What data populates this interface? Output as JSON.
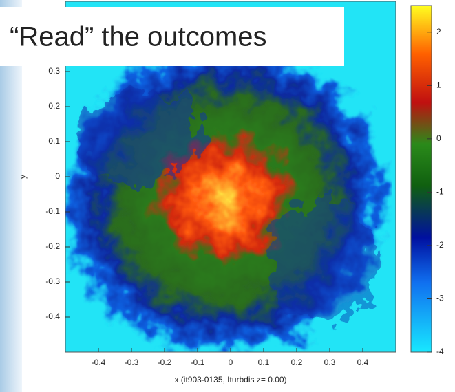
{
  "chart_data": {
    "type": "heatmap",
    "annotation": "“Read” the outcomes",
    "x_label": "x (it903-0135, Iturbdis  z= 0.00)",
    "y_label": "y",
    "xlim": [
      -0.5,
      0.5
    ],
    "xticks": [
      -0.4,
      -0.3,
      -0.2,
      -0.1,
      0,
      0.1,
      0.2,
      0.3,
      0.4
    ],
    "ylim": [
      -0.5,
      0.5
    ],
    "yticks": [
      -0.4,
      -0.3,
      -0.2,
      -0.1,
      0,
      0.1,
      0.2,
      0.3
    ],
    "colorbar": {
      "lim": [
        -4,
        2.5
      ],
      "ticks": [
        -4,
        -3,
        -2,
        -1,
        0,
        1,
        2
      ]
    }
  }
}
